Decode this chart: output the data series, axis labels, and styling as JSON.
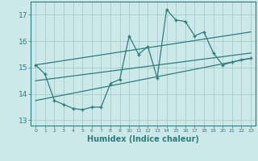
{
  "title": "",
  "xlabel": "Humidex (Indice chaleur)",
  "ylabel": "",
  "bg_color": "#cce8e8",
  "line_color": "#2d7d7d",
  "grid_color": "#aad0d0",
  "xlim": [
    -0.5,
    23.5
  ],
  "ylim": [
    12.8,
    17.5
  ],
  "yticks": [
    13,
    14,
    15,
    16,
    17
  ],
  "xticks": [
    0,
    1,
    2,
    3,
    4,
    5,
    6,
    7,
    8,
    9,
    10,
    11,
    12,
    13,
    14,
    15,
    16,
    17,
    18,
    19,
    20,
    21,
    22,
    23
  ],
  "data_x": [
    0,
    1,
    2,
    3,
    4,
    5,
    6,
    7,
    8,
    9,
    10,
    11,
    12,
    13,
    14,
    15,
    16,
    17,
    18,
    19,
    20,
    21,
    22,
    23
  ],
  "data_y": [
    15.1,
    14.75,
    13.75,
    13.6,
    13.45,
    13.4,
    13.5,
    13.5,
    14.4,
    14.55,
    16.2,
    15.5,
    15.8,
    14.6,
    17.2,
    16.8,
    16.75,
    16.2,
    16.35,
    15.55,
    15.1,
    15.2,
    15.3,
    15.35
  ],
  "upper_line_x": [
    0,
    23
  ],
  "upper_line_y": [
    15.1,
    16.35
  ],
  "lower_line_x": [
    0,
    23
  ],
  "lower_line_y": [
    14.5,
    15.55
  ],
  "mid_line_x": [
    0,
    23
  ],
  "mid_line_y": [
    13.75,
    15.35
  ],
  "xlabel_fontsize": 7,
  "xtick_fontsize": 4.5,
  "ytick_fontsize": 6.5
}
